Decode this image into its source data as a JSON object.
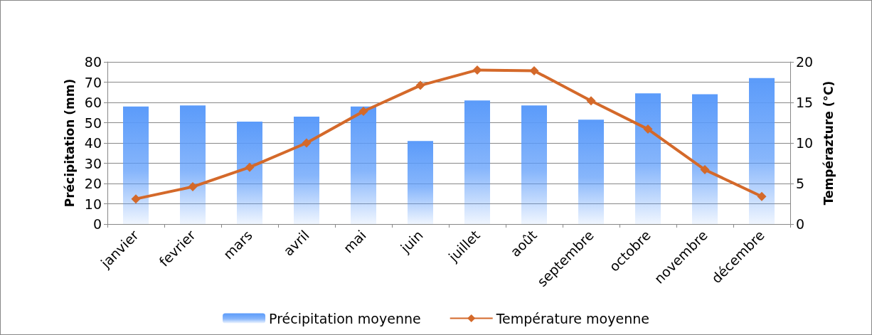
{
  "chart_data": {
    "type": "bar",
    "ylabel": "Précipitation (mm)",
    "y2label": "Tempérazture (°C)",
    "categories": [
      "janvier",
      "fevrier",
      "mars",
      "avril",
      "mai",
      "juin",
      "juillet",
      "août",
      "septembre",
      "octobre",
      "novembre",
      "décembre"
    ],
    "series": [
      {
        "name": "Précipitation moyenne",
        "color": "#5b9bfa",
        "values": [
          58,
          58.5,
          50.5,
          53,
          58,
          41,
          61,
          58.5,
          51.5,
          64.5,
          64,
          72
        ]
      },
      {
        "name": "Température moyenne",
        "type": "line",
        "axis": "y2",
        "color": "#d4692a",
        "values": [
          3.1,
          4.6,
          7,
          10,
          13.9,
          17.1,
          19,
          18.9,
          15.2,
          11.7,
          6.7,
          3.4
        ]
      }
    ],
    "ylim": [
      0,
      80
    ],
    "yticks": [
      0,
      10,
      20,
      30,
      40,
      50,
      60,
      70,
      80
    ],
    "y2lim": [
      0,
      20
    ],
    "y2ticks": [
      0,
      5,
      10,
      15,
      20
    ],
    "grid": "y",
    "legend": "bottom",
    "marker": "diamond"
  }
}
